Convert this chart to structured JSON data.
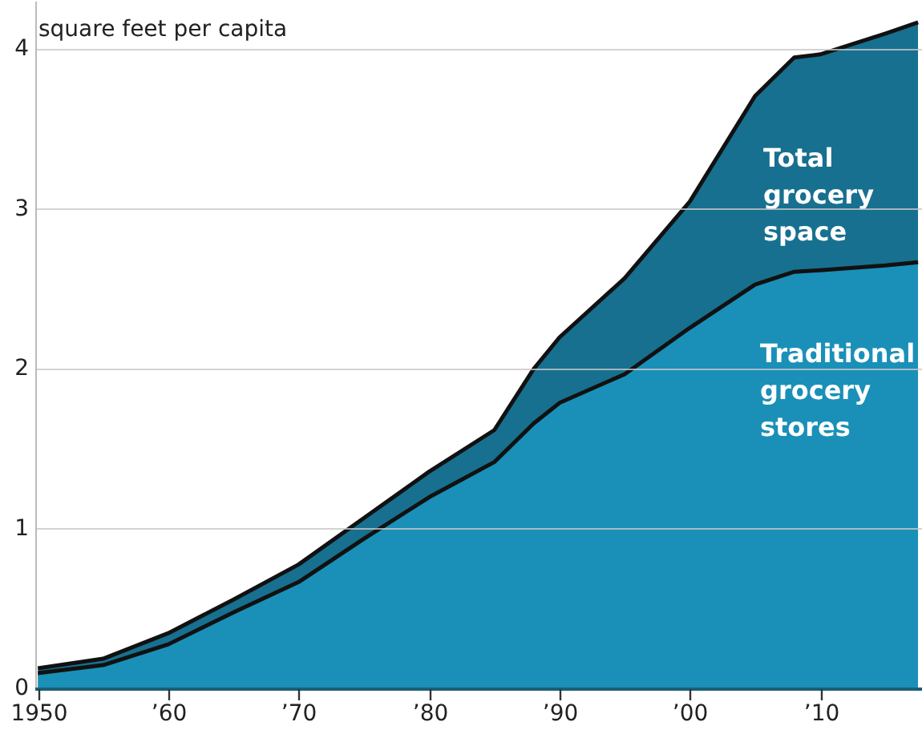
{
  "chart_data": {
    "type": "area",
    "x": [
      1950,
      1955,
      1960,
      1965,
      1970,
      1975,
      1980,
      1985,
      1988,
      1990,
      1995,
      2000,
      2005,
      2008,
      2010,
      2015,
      2017.5
    ],
    "series": [
      {
        "name": "Total grocery space",
        "color": "#17708f",
        "values": [
          0.13,
          0.19,
          0.35,
          0.56,
          0.78,
          1.07,
          1.36,
          1.62,
          2.0,
          2.2,
          2.57,
          3.05,
          3.71,
          3.95,
          3.97,
          4.1,
          4.17
        ]
      },
      {
        "name": "Traditional grocery stores",
        "color": "#1a90b8",
        "values": [
          0.1,
          0.15,
          0.28,
          0.48,
          0.67,
          0.94,
          1.2,
          1.42,
          1.66,
          1.79,
          1.97,
          2.26,
          2.53,
          2.61,
          2.62,
          2.65,
          2.67
        ]
      }
    ],
    "xlim": [
      1949.8,
      2017.8
    ],
    "xticks": [
      1950,
      {
        "value": 1960,
        "label": "’60"
      },
      {
        "value": 1970,
        "label": "’70"
      },
      {
        "value": 1980,
        "label": "’80"
      },
      {
        "value": 1990,
        "label": "’90"
      },
      {
        "value": 2000,
        "label": "’00"
      },
      {
        "value": 2010,
        "label": "’10"
      }
    ],
    "ylim": [
      0,
      4.3
    ],
    "yticks": [
      0,
      1,
      2,
      3,
      4
    ],
    "ylabel": "square feet per capita",
    "grid": "y",
    "legend": false
  }
}
